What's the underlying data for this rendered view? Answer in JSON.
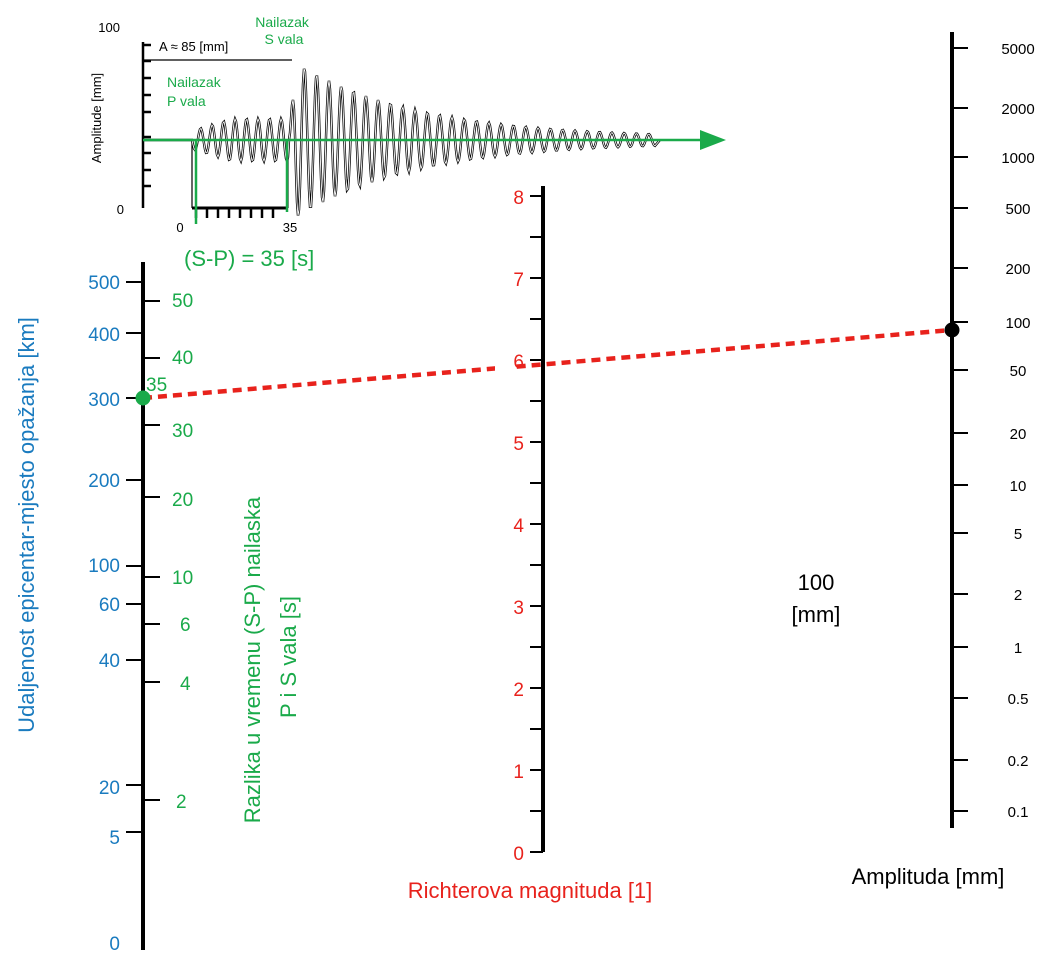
{
  "colors": {
    "distance": "#1a7bbf",
    "sp_time": "#1aaa4a",
    "magnitude": "#e8221c",
    "amplitude": "#000000",
    "connector": "#e8221c",
    "seismogram": "#000000"
  },
  "inset": {
    "y_axis_label": "Amplitude [mm]",
    "y_tick_max": "100",
    "y_tick_min": "0",
    "x_tick_start": "0",
    "x_tick_end": "35",
    "amplitude_note": "A ≈ 85 [mm]",
    "s_wave_label": [
      "Nailazak",
      "S vala"
    ],
    "p_wave_label": [
      "Nailazak",
      "P vala"
    ],
    "sp_result": "(S-P) = 35 [s]"
  },
  "distance_scale": {
    "title": "Udaljenost epicentar-mjesto opažanja [km]",
    "ticks": [
      "500",
      "400",
      "300",
      "200",
      "100",
      "60",
      "40",
      "20",
      "5",
      "0"
    ]
  },
  "sp_scale": {
    "title_lines": [
      "Razlika u vremenu (S-P) nailaska",
      "P i S vala [s]"
    ],
    "ticks": [
      "50",
      "40",
      "30",
      "20",
      "10",
      "6",
      "4",
      "2"
    ],
    "reading": "35"
  },
  "magnitude_scale": {
    "title": "Richterova magnituda [1]",
    "ticks": [
      "8",
      "7",
      "6",
      "5",
      "4",
      "3",
      "2",
      "1",
      "0"
    ],
    "reading": "6"
  },
  "amplitude_scale": {
    "title": "Amplituda [mm]",
    "ticks": [
      "5000",
      "2000",
      "1000",
      "500",
      "200",
      "100",
      "50",
      "20",
      "10",
      "5",
      "2",
      "1",
      "0.5",
      "0.2",
      "0.1"
    ],
    "reading_value": "100",
    "reading_unit": "[mm]"
  }
}
